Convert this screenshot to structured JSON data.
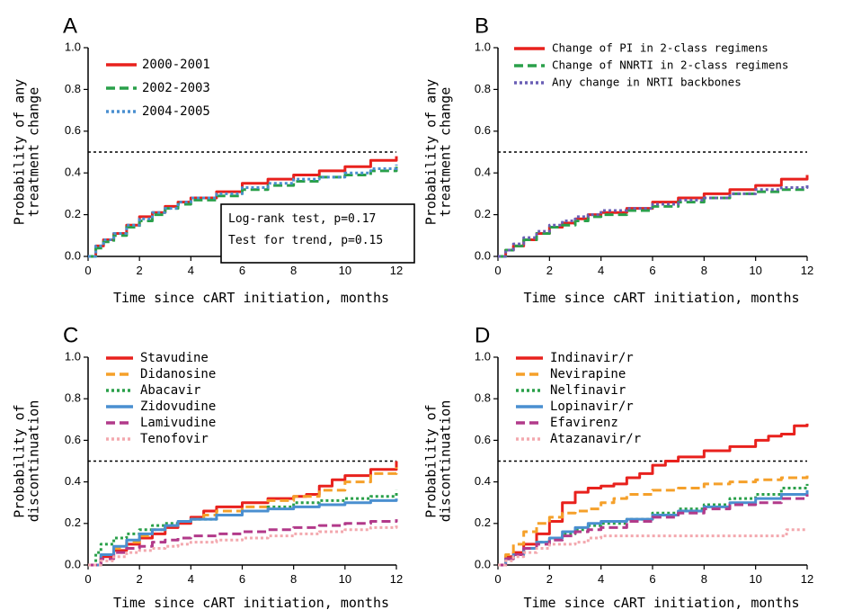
{
  "chart_data": [
    {
      "panel": "A",
      "type": "line",
      "xlabel": "Time since cART initiation, months",
      "ylabel": [
        "Probability of any",
        "treatment change"
      ],
      "xlim": [
        0,
        12
      ],
      "ylim": [
        0,
        1
      ],
      "xticks": [
        "0",
        "2",
        "4",
        "6",
        "8",
        "10",
        "12"
      ],
      "yticks": [
        "0.0",
        "0.2",
        "0.4",
        "0.6",
        "0.8",
        "1.0"
      ],
      "reference_line": 0.5,
      "legend_position": "top-left",
      "annotation": [
        "Log-rank test, p=0.17",
        "Test for trend, p=0.15"
      ],
      "series": [
        {
          "name": "2000-2001",
          "color": "#e8211d",
          "style": "solid",
          "x": [
            0,
            0.3,
            0.6,
            1,
            1.5,
            2,
            2.5,
            3,
            3.5,
            4,
            5,
            6,
            7,
            8,
            9,
            10,
            11,
            12
          ],
          "y": [
            0,
            0.05,
            0.08,
            0.11,
            0.15,
            0.19,
            0.21,
            0.24,
            0.26,
            0.28,
            0.31,
            0.35,
            0.37,
            0.39,
            0.41,
            0.43,
            0.46,
            0.48
          ]
        },
        {
          "name": "2002-2003",
          "color": "#2aa04a",
          "style": "dash",
          "x": [
            0,
            0.3,
            0.6,
            1,
            1.5,
            2,
            2.5,
            3,
            3.5,
            4,
            5,
            6,
            7,
            8,
            9,
            10,
            11,
            12
          ],
          "y": [
            0,
            0.04,
            0.07,
            0.1,
            0.14,
            0.17,
            0.2,
            0.23,
            0.25,
            0.27,
            0.29,
            0.32,
            0.34,
            0.36,
            0.38,
            0.39,
            0.41,
            0.43
          ]
        },
        {
          "name": "2004-2005",
          "color": "#4a8fd0",
          "style": "dot",
          "x": [
            0,
            0.3,
            0.6,
            1,
            1.5,
            2,
            2.5,
            3,
            3.5,
            4,
            5,
            6,
            7,
            8,
            9,
            10,
            11,
            12
          ],
          "y": [
            0,
            0.05,
            0.08,
            0.11,
            0.15,
            0.18,
            0.21,
            0.23,
            0.26,
            0.28,
            0.3,
            0.33,
            0.35,
            0.37,
            0.38,
            0.4,
            0.42,
            0.44
          ]
        }
      ]
    },
    {
      "panel": "B",
      "type": "line",
      "xlabel": "Time since cART initiation, months",
      "ylabel": [
        "Probability of any",
        "treatment change"
      ],
      "xlim": [
        0,
        12
      ],
      "ylim": [
        0,
        1
      ],
      "xticks": [
        "0",
        "2",
        "4",
        "6",
        "8",
        "10",
        "12"
      ],
      "yticks": [
        "0.0",
        "0.2",
        "0.4",
        "0.6",
        "0.8",
        "1.0"
      ],
      "reference_line": 0.5,
      "legend_position": "top",
      "series": [
        {
          "name": "Change of PI in 2-class regimens",
          "color": "#e8211d",
          "style": "solid",
          "x": [
            0,
            0.3,
            0.6,
            1,
            1.5,
            2,
            2.5,
            3,
            3.5,
            4,
            5,
            6,
            7,
            8,
            9,
            10,
            11,
            12
          ],
          "y": [
            0,
            0.03,
            0.05,
            0.08,
            0.11,
            0.14,
            0.16,
            0.18,
            0.2,
            0.21,
            0.23,
            0.26,
            0.28,
            0.3,
            0.32,
            0.34,
            0.37,
            0.39
          ]
        },
        {
          "name": "Change of NNRTI in 2-class regimens",
          "color": "#2aa04a",
          "style": "dash",
          "x": [
            0,
            0.3,
            0.6,
            1,
            1.5,
            2,
            2.5,
            3,
            3.5,
            4,
            5,
            6,
            7,
            8,
            9,
            10,
            11,
            12
          ],
          "y": [
            0,
            0.03,
            0.05,
            0.08,
            0.11,
            0.14,
            0.15,
            0.17,
            0.19,
            0.2,
            0.22,
            0.24,
            0.26,
            0.28,
            0.3,
            0.31,
            0.32,
            0.34
          ]
        },
        {
          "name": "Any change in NRTI backbones",
          "color": "#6a5fb5",
          "style": "dot",
          "x": [
            0,
            0.3,
            0.6,
            1,
            1.5,
            2,
            2.5,
            3,
            3.5,
            4,
            5,
            6,
            7,
            8,
            9,
            10,
            11,
            12
          ],
          "y": [
            0,
            0.03,
            0.06,
            0.09,
            0.12,
            0.15,
            0.17,
            0.19,
            0.2,
            0.22,
            0.23,
            0.25,
            0.27,
            0.28,
            0.3,
            0.32,
            0.33,
            0.35
          ]
        }
      ]
    },
    {
      "panel": "C",
      "type": "line",
      "xlabel": "Time since cART initiation, months",
      "ylabel": [
        "Probability of",
        "discontinuation"
      ],
      "xlim": [
        0,
        12
      ],
      "ylim": [
        0,
        1
      ],
      "xticks": [
        "0",
        "2",
        "4",
        "6",
        "8",
        "10",
        "12"
      ],
      "yticks": [
        "0.0",
        "0.2",
        "0.4",
        "0.6",
        "0.8",
        "1.0"
      ],
      "reference_line": 0.5,
      "legend_position": "top-left",
      "series": [
        {
          "name": "Stavudine",
          "color": "#e8211d",
          "style": "solid",
          "x": [
            0,
            0.5,
            1,
            1.5,
            2,
            2.5,
            3,
            3.5,
            4,
            4.5,
            5,
            6,
            7,
            8,
            8.5,
            9,
            9.5,
            10,
            11,
            12
          ],
          "y": [
            0,
            0.04,
            0.07,
            0.1,
            0.13,
            0.15,
            0.18,
            0.2,
            0.23,
            0.26,
            0.28,
            0.3,
            0.32,
            0.33,
            0.34,
            0.38,
            0.41,
            0.43,
            0.46,
            0.5
          ]
        },
        {
          "name": "Didanosine",
          "color": "#f5a02a",
          "style": "dash",
          "x": [
            0,
            0.5,
            1,
            1.5,
            2,
            2.5,
            3,
            3.5,
            4,
            4.5,
            5,
            6,
            7,
            8,
            9,
            10,
            11,
            12
          ],
          "y": [
            0,
            0.05,
            0.08,
            0.11,
            0.14,
            0.17,
            0.19,
            0.21,
            0.22,
            0.24,
            0.26,
            0.28,
            0.31,
            0.33,
            0.36,
            0.4,
            0.44,
            0.47
          ]
        },
        {
          "name": "Abacavir",
          "color": "#2aa04a",
          "style": "dot",
          "x": [
            0,
            0.3,
            0.5,
            1,
            1.5,
            2,
            2.5,
            3,
            3.5,
            4,
            5,
            6,
            7,
            8,
            9,
            10,
            11,
            12
          ],
          "y": [
            0,
            0.06,
            0.1,
            0.13,
            0.15,
            0.17,
            0.19,
            0.2,
            0.21,
            0.22,
            0.24,
            0.26,
            0.28,
            0.3,
            0.31,
            0.32,
            0.33,
            0.36
          ]
        },
        {
          "name": "Zidovudine",
          "color": "#4a8fd0",
          "style": "solid",
          "x": [
            0,
            0.5,
            1,
            1.5,
            2,
            2.5,
            3,
            3.5,
            4,
            5,
            6,
            7,
            8,
            9,
            10,
            11,
            12
          ],
          "y": [
            0,
            0.05,
            0.09,
            0.12,
            0.15,
            0.17,
            0.19,
            0.21,
            0.22,
            0.24,
            0.26,
            0.27,
            0.28,
            0.29,
            0.3,
            0.31,
            0.32
          ]
        },
        {
          "name": "Lamivudine",
          "color": "#b23a8a",
          "style": "dash",
          "x": [
            0,
            0.5,
            1,
            1.5,
            2,
            2.5,
            3,
            3.5,
            4,
            5,
            6,
            7,
            8,
            9,
            10,
            11,
            12
          ],
          "y": [
            0,
            0.03,
            0.06,
            0.08,
            0.09,
            0.11,
            0.12,
            0.13,
            0.14,
            0.15,
            0.16,
            0.17,
            0.18,
            0.19,
            0.2,
            0.21,
            0.22
          ]
        },
        {
          "name": "Tenofovir",
          "color": "#f3a8ae",
          "style": "dot",
          "x": [
            0,
            0.5,
            1,
            1.5,
            2,
            2.5,
            3,
            3.5,
            4,
            5,
            6,
            7,
            8,
            9,
            10,
            11,
            12
          ],
          "y": [
            0,
            0.02,
            0.04,
            0.06,
            0.07,
            0.08,
            0.09,
            0.1,
            0.11,
            0.12,
            0.13,
            0.14,
            0.15,
            0.16,
            0.17,
            0.18,
            0.19
          ]
        }
      ]
    },
    {
      "panel": "D",
      "type": "line",
      "xlabel": "Time since cART initiation, months",
      "ylabel": [
        "Probability of",
        "discontinuation"
      ],
      "xlim": [
        0,
        12
      ],
      "ylim": [
        0,
        1
      ],
      "xticks": [
        "0",
        "2",
        "4",
        "6",
        "8",
        "10",
        "12"
      ],
      "yticks": [
        "0.0",
        "0.2",
        "0.4",
        "0.6",
        "0.8",
        "1.0"
      ],
      "reference_line": 0.5,
      "legend_position": "top-left",
      "series": [
        {
          "name": "Indinavir/r",
          "color": "#e8211d",
          "style": "solid",
          "x": [
            0,
            0.3,
            0.6,
            1,
            1.5,
            2,
            2.5,
            3,
            3.5,
            4,
            4.5,
            5,
            5.5,
            6,
            6.5,
            7,
            8,
            9,
            10,
            10.5,
            11,
            11.5,
            12
          ],
          "y": [
            0,
            0.04,
            0.06,
            0.1,
            0.15,
            0.21,
            0.3,
            0.35,
            0.37,
            0.38,
            0.39,
            0.42,
            0.44,
            0.48,
            0.5,
            0.52,
            0.55,
            0.57,
            0.6,
            0.62,
            0.63,
            0.67,
            0.68
          ]
        },
        {
          "name": "Nevirapine",
          "color": "#f5a02a",
          "style": "dash",
          "x": [
            0,
            0.3,
            0.6,
            1,
            1.5,
            2,
            2.5,
            3,
            3.5,
            4,
            4.5,
            5,
            6,
            7,
            8,
            9,
            10,
            11,
            12
          ],
          "y": [
            0,
            0.05,
            0.1,
            0.16,
            0.2,
            0.23,
            0.25,
            0.26,
            0.27,
            0.3,
            0.32,
            0.34,
            0.36,
            0.37,
            0.39,
            0.4,
            0.41,
            0.42,
            0.43
          ]
        },
        {
          "name": "Nelfinavir",
          "color": "#2aa04a",
          "style": "dot",
          "x": [
            0,
            0.3,
            0.6,
            1,
            1.5,
            2,
            2.5,
            3,
            3.5,
            4,
            5,
            6,
            7,
            8,
            9,
            10,
            11,
            12
          ],
          "y": [
            0,
            0.03,
            0.05,
            0.08,
            0.11,
            0.13,
            0.15,
            0.17,
            0.19,
            0.2,
            0.22,
            0.25,
            0.27,
            0.29,
            0.32,
            0.34,
            0.37,
            0.39
          ]
        },
        {
          "name": "Lopinavir/r",
          "color": "#4a8fd0",
          "style": "solid",
          "x": [
            0,
            0.3,
            0.6,
            1,
            1.5,
            2,
            2.5,
            3,
            3.5,
            4,
            5,
            6,
            7,
            8,
            9,
            10,
            11,
            12
          ],
          "y": [
            0,
            0.03,
            0.05,
            0.08,
            0.11,
            0.13,
            0.16,
            0.18,
            0.2,
            0.21,
            0.22,
            0.24,
            0.26,
            0.28,
            0.3,
            0.32,
            0.34,
            0.36
          ]
        },
        {
          "name": "Efavirenz",
          "color": "#b23a8a",
          "style": "dash",
          "x": [
            0,
            0.3,
            0.6,
            1,
            1.5,
            2,
            2.5,
            3,
            3.5,
            4,
            5,
            6,
            7,
            8,
            9,
            10,
            11,
            12
          ],
          "y": [
            0,
            0.03,
            0.05,
            0.08,
            0.1,
            0.12,
            0.14,
            0.16,
            0.17,
            0.18,
            0.21,
            0.23,
            0.25,
            0.27,
            0.29,
            0.3,
            0.32,
            0.34
          ]
        },
        {
          "name": "Atazanavir/r",
          "color": "#f3a8ae",
          "style": "dot",
          "x": [
            0,
            0.3,
            0.6,
            1,
            1.5,
            2,
            2.5,
            3,
            3.5,
            4,
            5,
            6,
            7,
            8,
            9,
            10,
            11,
            11.2,
            12
          ],
          "y": [
            0,
            0.02,
            0.04,
            0.06,
            0.08,
            0.1,
            0.1,
            0.11,
            0.13,
            0.14,
            0.14,
            0.14,
            0.14,
            0.14,
            0.14,
            0.14,
            0.14,
            0.17,
            0.17
          ]
        }
      ]
    }
  ]
}
